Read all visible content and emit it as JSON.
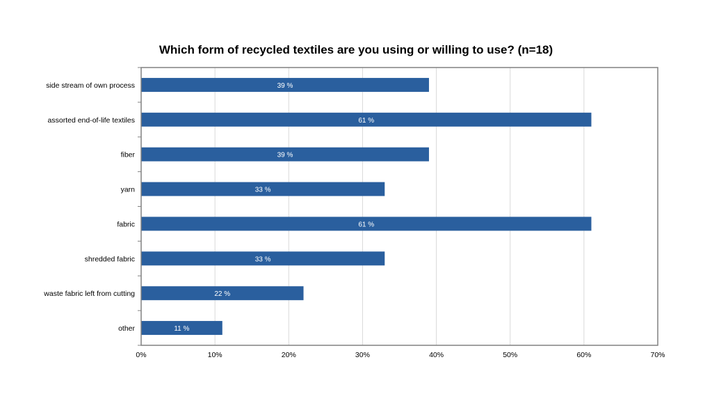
{
  "chart_data": {
    "type": "bar",
    "orientation": "horizontal",
    "title": "Which form of recycled textiles are you using or willing to use? (n=18)",
    "categories": [
      "side stream of own process",
      "assorted end-of-life textiles",
      "fiber",
      "yarn",
      "fabric",
      "shredded fabric",
      "waste fabric left from cutting",
      "other"
    ],
    "values": [
      39,
      61,
      39,
      33,
      61,
      33,
      22,
      11
    ],
    "data_labels": [
      "39 %",
      "61 %",
      "39 %",
      "33 %",
      "61 %",
      "33 %",
      "22 %",
      "11 %"
    ],
    "xlim": [
      0,
      70
    ],
    "x_ticks": [
      0,
      10,
      20,
      30,
      40,
      50,
      60,
      70
    ],
    "x_tick_labels": [
      "0%",
      "10%",
      "20%",
      "30%",
      "40%",
      "50%",
      "60%",
      "70%"
    ],
    "grid": true,
    "bar_color": "#2a5f9e",
    "data_label_color": "#ffffff"
  }
}
